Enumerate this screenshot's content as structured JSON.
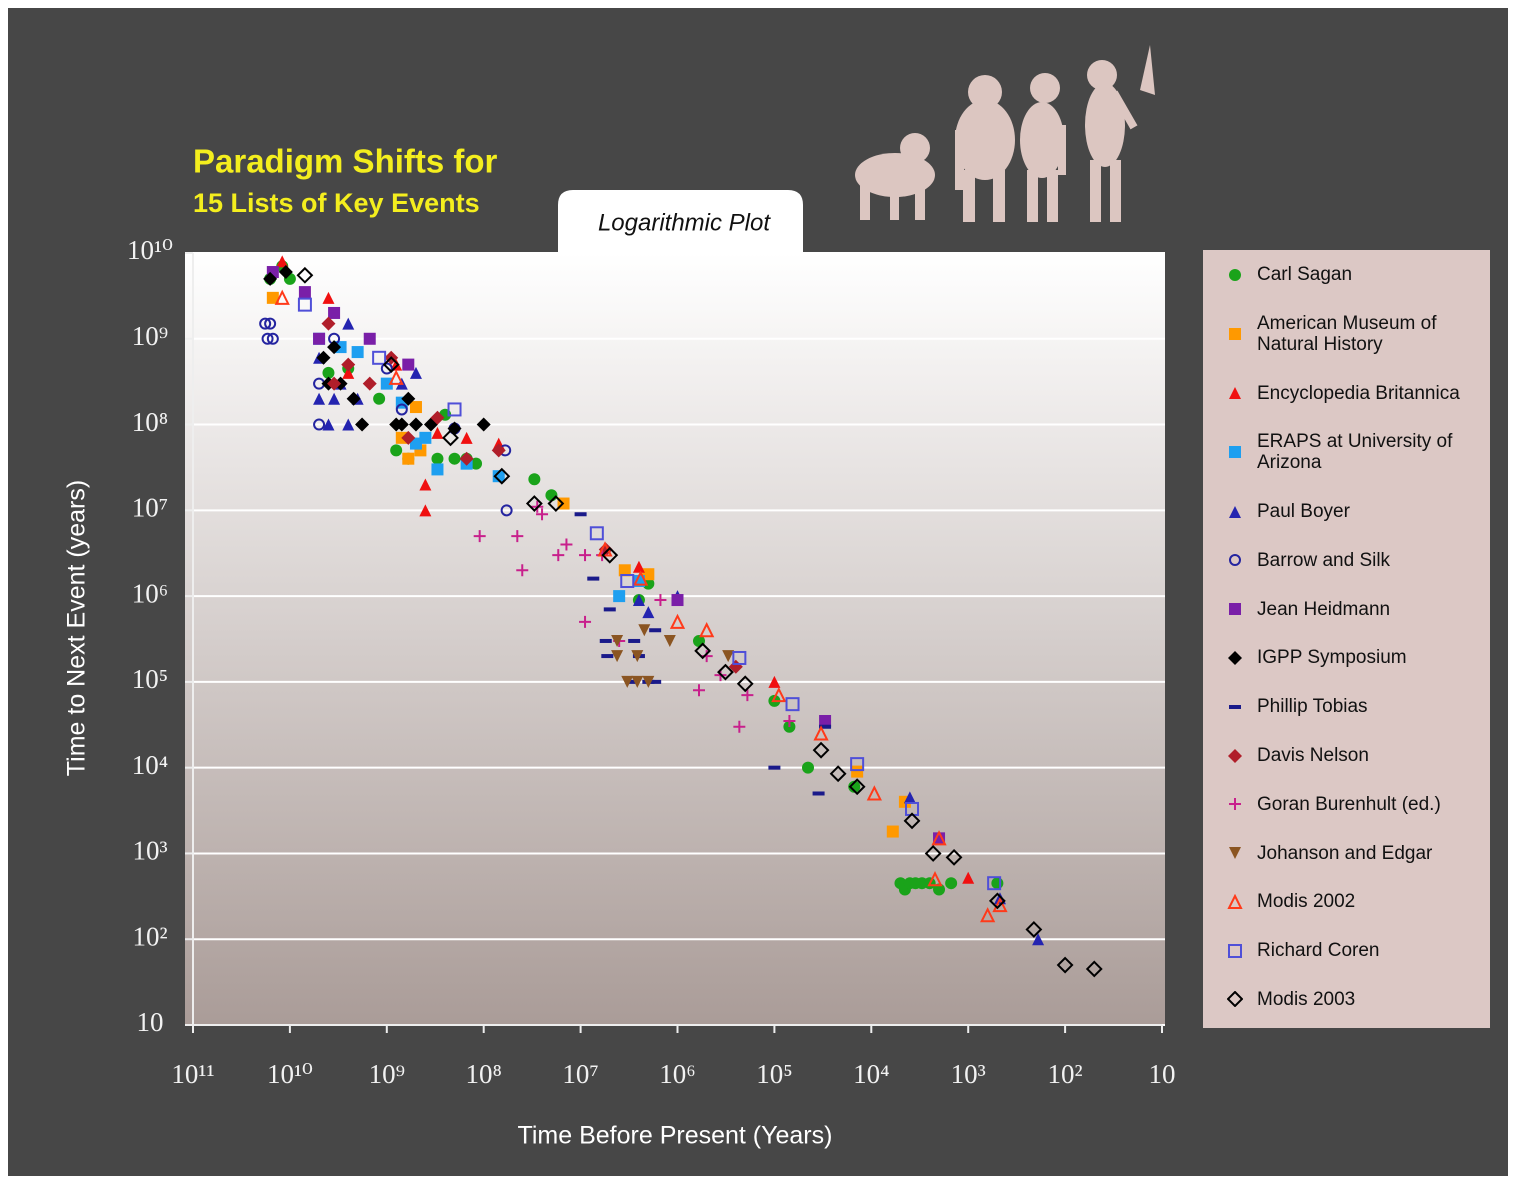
{
  "chart_data": {
    "type": "scatter",
    "title": "Paradigm Shifts for",
    "subtitle": "15 Lists of Key Events",
    "annotation": "Logarithmic Plot",
    "x_label": "Time Before Present (Years)",
    "y_label": "Time to Next Event (years)",
    "xscale": "log",
    "yscale": "log",
    "xlim": [
      100000000000.0,
      10
    ],
    "ylim": [
      10,
      10000000000.0
    ],
    "xticks": [
      {
        "value": 100000000000.0,
        "label": "10¹¹"
      },
      {
        "value": 10000000000.0,
        "label": "10¹⁰"
      },
      {
        "value": 1000000000.0,
        "label": "10⁹"
      },
      {
        "value": 100000000.0,
        "label": "10⁸"
      },
      {
        "value": 10000000.0,
        "label": "10⁷"
      },
      {
        "value": 1000000.0,
        "label": "10⁶"
      },
      {
        "value": 100000.0,
        "label": "10⁵"
      },
      {
        "value": 10000.0,
        "label": "10⁴"
      },
      {
        "value": 1000.0,
        "label": "10³"
      },
      {
        "value": 100,
        "label": "10²"
      },
      10
    ],
    "yticks": [
      10,
      {
        "value": 100,
        "label": "10²"
      },
      {
        "value": 1000.0,
        "label": "10³"
      },
      {
        "value": 10000.0,
        "label": "10⁴"
      },
      {
        "value": 100000.0,
        "label": "10⁵"
      },
      {
        "value": 1000000.0,
        "label": "10⁶"
      },
      {
        "value": 10000000.0,
        "label": "10⁷"
      },
      {
        "value": 100000000.0,
        "label": "10⁸"
      },
      {
        "value": 1000000000.0,
        "label": "10⁹"
      },
      {
        "value": 10000000000.0,
        "label": "10¹⁰"
      }
    ],
    "grid": true,
    "legend": "outside-right",
    "series": [
      {
        "name": "Carl Sagan",
        "color": "#1aa31a",
        "marker": "circle",
        "x": [
          16000000000.0,
          12000000000.0,
          10000000000.0,
          4000000000.0,
          2500000000.0,
          1200000000.0,
          250000000.0,
          800000000.0,
          600000000.0,
          300000000.0,
          200000000.0,
          150000000.0,
          120000000.0,
          30000000.0,
          20000000.0,
          2500000.0,
          2000000.0,
          600000.0,
          100000.0,
          70000.0,
          45000.0,
          15000.0,
          5000.0,
          4500.0,
          4000.0,
          3500.0,
          3000.0,
          2500.0,
          2000.0,
          1500.0,
          500
        ],
        "y": [
          5000000000.0,
          7000000000.0,
          5000000000.0,
          400000000.0,
          450000000.0,
          200000000.0,
          130000000.0,
          50000000.0,
          40000000.0,
          40000000.0,
          40000000.0,
          40000000.0,
          35000000.0,
          23000000.0,
          15000000.0,
          900000.0,
          1400000.0,
          300000.0,
          60000.0,
          30000.0,
          10000.0,
          6000.0,
          450,
          380,
          450,
          450,
          450,
          450,
          380,
          450,
          450
        ]
      },
      {
        "name": "American Museum of Natural History",
        "color": "#ff9900",
        "marker": "square",
        "x": [
          15000000000.0,
          700000000.0,
          600000000.0,
          500000000.0,
          450000000.0,
          15000000.0,
          3500000.0,
          2000000.0,
          14000.0,
          6000.0,
          4500.0
        ],
        "y": [
          3000000000.0,
          70000000.0,
          40000000.0,
          160000000.0,
          50000000.0,
          12000000.0,
          2000000.0,
          1800000.0,
          9000.0,
          1800.0,
          4000.0
        ]
      },
      {
        "name": "Encyclopedia Britannica",
        "color": "#f01010",
        "marker": "triangle",
        "x": [
          12000000000.0,
          4000000000.0,
          2500000000.0,
          800000000.0,
          400000000.0,
          400000000.0,
          300000000.0,
          150000000.0,
          70000000.0,
          2500000.0,
          100000.0,
          1000.0
        ],
        "y": [
          8000000000.0,
          3000000000.0,
          400000000.0,
          500000000.0,
          20000000.0,
          10000000.0,
          80000000.0,
          70000000.0,
          60000000.0,
          2200000.0,
          100000.0,
          520
        ]
      },
      {
        "name": "ERAPS at University of Arizona",
        "color": "#1e9ff0",
        "marker": "square",
        "x": [
          5000000000.0,
          3000000000.0,
          2000000000.0,
          1000000000.0,
          700000000.0,
          500000000.0,
          400000000.0,
          300000000.0,
          150000000.0,
          70000000.0,
          4000000.0,
          2500000.0
        ],
        "y": [
          1000000000.0,
          800000000.0,
          700000000.0,
          300000000.0,
          180000000.0,
          60000000.0,
          70000000.0,
          30000000.0,
          35000000.0,
          25000000.0,
          1000000.0,
          1500000.0
        ]
      },
      {
        "name": "Paul Boyer",
        "color": "#2424b0",
        "marker": "triangle",
        "x": [
          5000000000.0,
          5000000000.0,
          4000000000.0,
          3500000000.0,
          3000000000.0,
          2500000000.0,
          2500000000.0,
          2000000000.0,
          700000000.0,
          500000000.0,
          2500000.0,
          2000000.0,
          1000000.0,
          4000.0,
          470,
          190
        ],
        "y": [
          600000000.0,
          200000000.0,
          100000000.0,
          200000000.0,
          300000000.0,
          1500000000.0,
          100000000.0,
          200000000.0,
          300000000.0,
          400000000.0,
          900000.0,
          650000.0,
          1000000.0,
          4500.0,
          300,
          100
        ]
      },
      {
        "name": "Barrow and Silk",
        "color": "#2424a0",
        "marker": "circle-open",
        "x": [
          18000000000.0,
          16000000000.0,
          17000000000.0,
          15000000000.0,
          5000000000.0,
          5000000000.0,
          3500000000.0,
          1000000000.0,
          700000000.0,
          200000000.0,
          60000000.0,
          58000000.0
        ],
        "y": [
          1500000000.0,
          1500000000.0,
          1000000000.0,
          1000000000.0,
          100000000.0,
          300000000.0,
          1000000000.0,
          450000000.0,
          150000000.0,
          90000000.0,
          50000000.0,
          10000000.0
        ]
      },
      {
        "name": "Jean Heidmann",
        "color": "#7a1fa8",
        "marker": "square",
        "x": [
          15000000000.0,
          7000000000.0,
          5000000000.0,
          3500000000.0,
          1500000000.0,
          600000000.0,
          1000000.0,
          30000.0,
          2000.0
        ],
        "y": [
          6000000000.0,
          3500000000.0,
          1000000000.0,
          2000000000.0,
          1000000000.0,
          500000000.0,
          900000.0,
          35000.0,
          1500.0
        ]
      },
      {
        "name": "IGPP Symposium",
        "color": "#000000",
        "marker": "diamond",
        "x": [
          16000000000.0,
          11000000000.0,
          4500000000.0,
          4000000000.0,
          3500000000.0,
          3000000000.0,
          2200000000.0,
          1800000000.0,
          800000000.0,
          700000000.0,
          600000000.0,
          500000000.0,
          350000000.0,
          200000000.0,
          100000000.0
        ],
        "y": [
          5000000000.0,
          6000000000.0,
          600000000.0,
          300000000.0,
          800000000.0,
          300000000.0,
          200000000.0,
          100000000.0,
          100000000.0,
          100000000.0,
          200000000.0,
          100000000.0,
          100000000.0,
          90000000.0,
          100000000.0
        ]
      },
      {
        "name": "Phillip Tobias",
        "color": "#1a1a8a",
        "marker": "dash",
        "x": [
          10000000.0,
          7400000.0,
          5000000.0,
          5500000.0,
          5300000.0,
          2800000.0,
          2500000.0,
          1700000.0,
          2000000.0,
          3000000.0,
          1700000.0,
          100000.0,
          35000.0,
          30000.0
        ],
        "y": [
          9000000.0,
          1600000.0,
          700000.0,
          300000.0,
          200000.0,
          300000.0,
          200000.0,
          100000.0,
          100000.0,
          100000.0,
          400000.0,
          10000.0,
          5000.0,
          30000.0
        ]
      },
      {
        "name": "Davis Nelson",
        "color": "#b01e2a",
        "marker": "diamond",
        "x": [
          4000000000.0,
          3500000000.0,
          2500000000.0,
          1500000000.0,
          900000000.0,
          600000000.0,
          300000000.0,
          150000000.0,
          70000000.0,
          5500000.0,
          250000.0
        ],
        "y": [
          1500000000.0,
          300000000.0,
          500000000.0,
          300000000.0,
          600000000.0,
          70000000.0,
          120000000.0,
          40000000.0,
          50000000.0,
          3500000.0,
          150000.0
        ]
      },
      {
        "name": "Goran Burenhult (ed.)",
        "color": "#c8208c",
        "marker": "plus",
        "x": [
          28000000.0,
          25000000.0,
          110000000.0,
          45000000.0,
          40000000.0,
          17000000.0,
          14000000.0,
          9000000.0,
          6000000.0,
          9000000.0,
          4000000.0,
          1500000.0,
          500000.0,
          600000.0,
          360000.0,
          190000.0,
          230000.0,
          70000.0
        ],
        "y": [
          11000000.0,
          9000000.0,
          5000000.0,
          5000000.0,
          2000000.0,
          3000000.0,
          4000000.0,
          3000000.0,
          3000000.0,
          500000.0,
          300000.0,
          900000.0,
          200000.0,
          80000.0,
          120000.0,
          70000.0,
          30000.0,
          35000.0
        ]
      },
      {
        "name": "Johanson and Edgar",
        "color": "#8b5522",
        "marker": "triangle-down",
        "x": [
          4200000.0,
          4200000.0,
          2600000.0,
          2200000.0,
          3300000.0,
          2600000.0,
          2000000.0,
          1200000.0,
          300000.0
        ],
        "y": [
          300000.0,
          200000.0,
          200000.0,
          400000.0,
          100000.0,
          100000.0,
          100000.0,
          300000.0,
          200000.0
        ]
      },
      {
        "name": "Modis 2002",
        "color": "#ff3a1a",
        "marker": "triangle-open",
        "x": [
          12000000000.0,
          800000000.0,
          5600000.0,
          2400000.0,
          1000000.0,
          500000.0,
          90000.0,
          33000.0,
          9300.0,
          2000.0,
          2200.0,
          630,
          470
        ],
        "y": [
          3000000000.0,
          350000000.0,
          3500000.0,
          1600000.0,
          500000.0,
          400000.0,
          70000.0,
          25000.0,
          5000.0,
          1500.0,
          500,
          190,
          250
        ]
      },
      {
        "name": "Richard Coren",
        "color": "#4f4fd8",
        "marker": "square-open",
        "x": [
          7000000000.0,
          1200000000.0,
          200000000.0,
          6800000.0,
          3300000.0,
          230000.0,
          65000.0,
          14000.0,
          3800.0,
          540
        ],
        "y": [
          2500000000.0,
          600000000.0,
          150000000.0,
          5400000.0,
          1500000.0,
          190000.0,
          55000.0,
          11000.0,
          3300.0,
          450
        ]
      },
      {
        "name": "Modis 2003",
        "color": "#000000",
        "marker": "diamond-open",
        "x": [
          7000000000.0,
          900000000.0,
          220000000.0,
          65000000.0,
          30000000.0,
          18000000.0,
          5000000.0,
          550000.0,
          320000.0,
          200000.0,
          33000.0,
          22000.0,
          14000.0,
          3800.0,
          2300.0,
          1400.0,
          500,
          210,
          100,
          50
        ],
        "y": [
          5500000000.0,
          500000000.0,
          70000000.0,
          25000000.0,
          12000000.0,
          12000000.0,
          3000000.0,
          230000.0,
          130000.0,
          95000.0,
          16000.0,
          8500.0,
          6000.0,
          2400.0,
          1000.0,
          900,
          280,
          130,
          50,
          45
        ]
      }
    ]
  }
}
